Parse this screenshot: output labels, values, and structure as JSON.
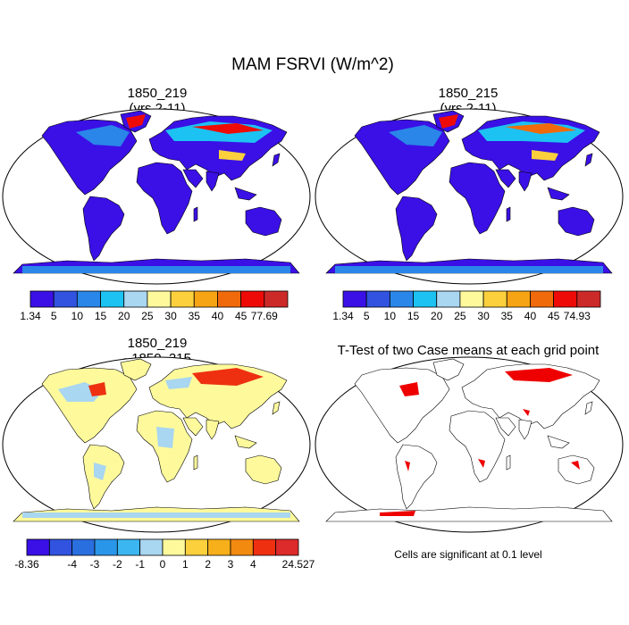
{
  "figure": {
    "title": "MAM FSRVI (W/m^2)"
  },
  "panels": [
    {
      "title_line1": "1850_219",
      "title_line2": "(yrs 2-11)"
    },
    {
      "title_line1": "1850_215",
      "title_line2": "(yrs 2-11)"
    },
    {
      "title_line1": "1850_219",
      "title_line2": "- 1850_215"
    },
    {
      "title_line1": "T-Test of two Case means at each grid point",
      "title_line2": ""
    }
  ],
  "colorbars": [
    {
      "labels": [
        "1.34",
        "5",
        "10",
        "15",
        "20",
        "25",
        "30",
        "35",
        "40",
        "45",
        "77.69"
      ],
      "colors": [
        "#3a10e6",
        "#3153e0",
        "#2a86e8",
        "#1cc2f2",
        "#a9d6f0",
        "#fefa9c",
        "#fbd03c",
        "#f7a414",
        "#f06a0c",
        "#ee0b07",
        "#cc2a28"
      ]
    },
    {
      "labels": [
        "1.34",
        "5",
        "10",
        "15",
        "20",
        "25",
        "30",
        "35",
        "40",
        "45",
        "74.93"
      ],
      "colors": [
        "#3a10e6",
        "#3153e0",
        "#2a86e8",
        "#1cc2f2",
        "#a9d6f0",
        "#fefa9c",
        "#fbd03c",
        "#f7a414",
        "#f06a0c",
        "#ee0b07",
        "#cc2a28"
      ]
    },
    {
      "labels": [
        "-8.36",
        "",
        "-4",
        "-3",
        "-2",
        "-1",
        "0",
        "1",
        "2",
        "3",
        "4",
        "",
        "24.527"
      ],
      "colors": [
        "#3a10e6",
        "#3153e0",
        "#2a6fe0",
        "#2a96ea",
        "#3bb6f0",
        "#a9d6f0",
        "#fefa9c",
        "#fbd03c",
        "#f7b01a",
        "#f28a10",
        "#ee3010",
        "#dd2a2a"
      ]
    }
  ],
  "note": "Cells are significant at 0.1 level",
  "map_colors": {
    "ocean": "#ffffff",
    "coast": "#000000",
    "significant": "#ee0000"
  }
}
